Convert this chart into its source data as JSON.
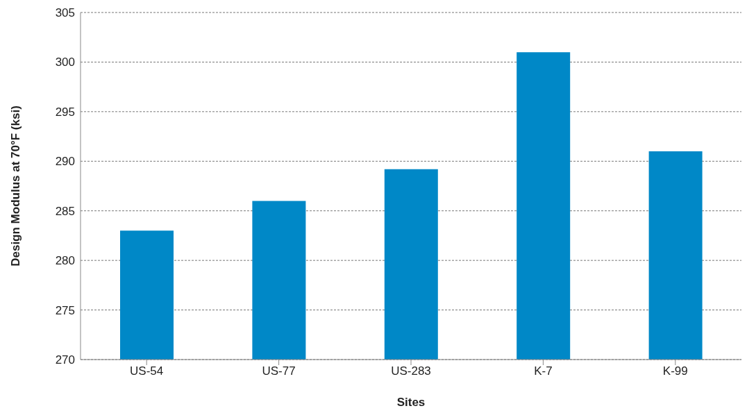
{
  "chart_data": {
    "type": "bar",
    "xlabel": "Sites",
    "ylabel": "Design Modulus at 70°F (ksi)",
    "categories": [
      "US-54",
      "US-77",
      "US-283",
      "K-7",
      "K-99"
    ],
    "values": [
      283,
      286,
      289.2,
      301,
      291
    ],
    "color": "#0088c7",
    "ylim": [
      270,
      305
    ],
    "yticks": [
      270,
      275,
      280,
      285,
      290,
      295,
      300,
      305
    ],
    "grid": "y"
  }
}
